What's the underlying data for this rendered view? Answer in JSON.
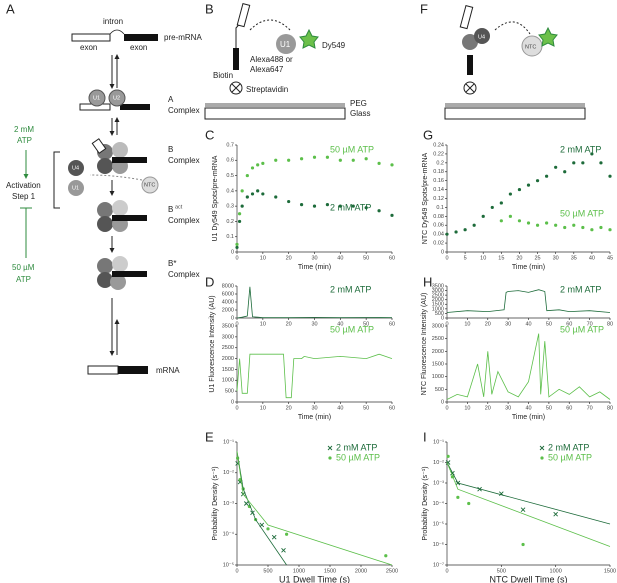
{
  "panels": [
    "A",
    "B",
    "C",
    "D",
    "E",
    "F",
    "G",
    "H",
    "I"
  ],
  "diagram_a": {
    "intron": "intron",
    "exon_left": "exon",
    "exon_right": "exon",
    "pre_mrna": "pre-mRNA",
    "a": "A",
    "a_complex": "Complex",
    "b": "B",
    "b_complex": "Complex",
    "bact": "B",
    "bact_sup": "act",
    "bact_complex": "Complex",
    "bstar": "B*",
    "bstar_complex": "Complex",
    "mrna": "mRNA",
    "high_atp": "2 mM",
    "high_atp_unit": "ATP",
    "activation": "Activation",
    "step": "Step 1",
    "low_atp": "50 µM",
    "low_atp_unit": "ATP",
    "u1": "U1",
    "u2": "U2",
    "u4": "U4",
    "u1_free": "U1",
    "u4_free": "U4",
    "ntc": "NTC"
  },
  "diagram_b": {
    "u1": "U1",
    "dye": "Dy549",
    "alexa_a": "Alexa488 or",
    "alexa_b": "Alexa647",
    "biotin": "Biotin",
    "streptavidin": "Streptavidin",
    "peg": "PEG",
    "glass": "Glass"
  },
  "diagram_f": {
    "ntc": "NTC",
    "u4": "U4"
  },
  "chart_data": [
    {
      "type": "scatter",
      "xlabel": "Time (min)",
      "ylabel": "U1  Dy549 Spots/pre-mRNA",
      "xlim": [
        0,
        60
      ],
      "xticks": [
        0,
        10,
        20,
        30,
        40,
        50,
        60
      ],
      "ylim": [
        0,
        0.7
      ],
      "yticks": [
        0,
        0.1,
        0.2,
        0.3,
        0.4,
        0.5,
        0.6,
        0.7
      ],
      "series": [
        {
          "name": "50 µM ATP",
          "color": "#5cbf4a",
          "marker": "dot",
          "x": [
            0,
            1,
            2,
            4,
            6,
            8,
            10,
            15,
            20,
            25,
            30,
            35,
            40,
            45,
            50,
            55,
            60
          ],
          "values": [
            0.05,
            0.25,
            0.4,
            0.5,
            0.55,
            0.57,
            0.58,
            0.6,
            0.6,
            0.61,
            0.62,
            0.62,
            0.6,
            0.6,
            0.61,
            0.58,
            0.57
          ]
        },
        {
          "name": "2 mM ATP",
          "color": "#1d6b3a",
          "marker": "dot",
          "x": [
            0,
            1,
            2,
            4,
            6,
            8,
            10,
            15,
            20,
            25,
            30,
            35,
            40,
            45,
            50,
            55,
            60
          ],
          "values": [
            0.03,
            0.2,
            0.3,
            0.36,
            0.38,
            0.4,
            0.38,
            0.36,
            0.33,
            0.31,
            0.3,
            0.31,
            0.3,
            0.3,
            0.29,
            0.27,
            0.24
          ]
        }
      ]
    },
    {
      "type": "line",
      "xlim": [
        0,
        60
      ],
      "xticks": [
        0,
        10,
        20,
        30,
        40,
        50,
        60
      ],
      "ylim": [
        0,
        8000
      ],
      "yticks": [
        0,
        2000,
        4000,
        6000,
        8000
      ],
      "series": [
        {
          "name": "2 mM ATP",
          "color": "#1d6b3a",
          "marker": "line",
          "x": [
            0,
            2,
            4,
            5,
            6,
            8,
            10,
            20,
            30,
            40,
            50,
            60
          ],
          "values": [
            0,
            200,
            500,
            7800,
            300,
            200,
            100,
            100,
            150,
            100,
            120,
            100
          ]
        }
      ]
    },
    {
      "type": "line",
      "xlabel": "Time (min)",
      "ylabel": "U1 Fluorescence Intensity (AU)",
      "xlim": [
        0,
        60
      ],
      "xticks": [
        0,
        10,
        20,
        30,
        40,
        50,
        60
      ],
      "ylim": [
        0,
        3500
      ],
      "yticks": [
        0,
        500,
        1000,
        1500,
        2000,
        2500,
        3000,
        3500
      ],
      "series": [
        {
          "name": "50 µM ATP",
          "color": "#5cbf4a",
          "marker": "line",
          "x": [
            0,
            1,
            2,
            4,
            5,
            18,
            19,
            21,
            22,
            25,
            26,
            30,
            40,
            50,
            55,
            60
          ],
          "values": [
            500,
            2000,
            400,
            400,
            2200,
            2200,
            200,
            200,
            2000,
            2000,
            2100,
            2000,
            2100,
            2000,
            2200,
            2000
          ]
        }
      ]
    },
    {
      "type": "scatter",
      "log_y": true,
      "xlabel": "U1 Dwell Time (s)",
      "ylabel": "Probability Density (s⁻¹)",
      "xlim": [
        0,
        2500
      ],
      "xticks": [
        0,
        500,
        1000,
        1500,
        2000,
        2500
      ],
      "ylim": [
        1e-05,
        0.1
      ],
      "yticks": [
        {
          "value": 0.1,
          "label": "10⁻¹"
        },
        {
          "value": 0.01,
          "label": "10⁻²"
        },
        {
          "value": 0.001,
          "label": "10⁻³"
        },
        {
          "value": 0.0001,
          "label": "10⁻⁴"
        },
        {
          "value": 1e-05,
          "label": "10⁻⁵"
        }
      ],
      "series": [
        {
          "name": "2 mM ATP",
          "color": "#1d6b3a",
          "marker": "x",
          "x": [
            10,
            50,
            100,
            150,
            250,
            400,
            600,
            750
          ],
          "values": [
            0.02,
            0.005,
            0.002,
            0.001,
            0.0005,
            0.0002,
            8e-05,
            3e-05
          ]
        },
        {
          "name": "50 µM ATP",
          "color": "#5cbf4a",
          "marker": "dot",
          "x": [
            10,
            50,
            100,
            200,
            300,
            500,
            800,
            2400
          ],
          "values": [
            0.03,
            0.006,
            0.003,
            0.0008,
            0.0003,
            0.00015,
            0.0001,
            2e-05
          ]
        },
        {
          "color": "#1d6b3a",
          "marker": "line",
          "x": [
            0,
            100,
            300,
            800
          ],
          "values": [
            0.05,
            0.003,
            0.0003,
            1e-05
          ]
        },
        {
          "color": "#5cbf4a",
          "marker": "line",
          "x": [
            0,
            100,
            500,
            2500
          ],
          "values": [
            0.05,
            0.002,
            0.0002,
            1e-05
          ]
        }
      ]
    },
    {
      "type": "scatter",
      "xlabel": "Time (min)",
      "ylabel": "NTC Dy549 Spots/pre-mRNA",
      "xlim": [
        0,
        45
      ],
      "xticks": [
        0,
        5,
        10,
        15,
        20,
        25,
        30,
        35,
        40,
        45
      ],
      "ylim": [
        0,
        0.24
      ],
      "yticks": [
        0,
        0.02,
        0.04,
        0.06,
        0.08,
        0.1,
        0.12,
        0.14,
        0.16,
        0.18,
        0.2,
        0.22,
        0.24
      ],
      "series": [
        {
          "name": "2 mM ATP",
          "color": "#1d6b3a",
          "marker": "dot",
          "x": [
            0,
            2.5,
            5,
            7.5,
            10,
            12.5,
            15,
            17.5,
            20,
            22.5,
            25,
            27.5,
            30,
            32.5,
            35,
            37.5,
            40,
            42.5,
            45
          ],
          "values": [
            0.04,
            0.045,
            0.05,
            0.06,
            0.08,
            0.1,
            0.11,
            0.13,
            0.14,
            0.15,
            0.16,
            0.17,
            0.19,
            0.18,
            0.2,
            0.2,
            0.22,
            0.2,
            0.17
          ]
        },
        {
          "name": "50 µM ATP",
          "color": "#5cbf4a",
          "marker": "dot",
          "x": [
            0,
            2.5,
            5,
            7.5,
            10,
            12.5,
            15,
            17.5,
            20,
            22.5,
            25,
            27.5,
            30,
            32.5,
            35,
            37.5,
            40,
            42.5,
            45
          ],
          "values": [
            null,
            null,
            null,
            null,
            null,
            null,
            0.07,
            0.08,
            0.07,
            0.065,
            0.06,
            0.065,
            0.06,
            0.055,
            0.06,
            0.055,
            0.05,
            0.055,
            0.05
          ]
        }
      ]
    },
    {
      "type": "line",
      "xlim": [
        0,
        80
      ],
      "xticks": [
        0,
        10,
        20,
        30,
        40,
        50,
        60,
        70,
        80
      ],
      "ylim": [
        0,
        3500
      ],
      "yticks": [
        0,
        500,
        1000,
        1500,
        2000,
        2500,
        3000,
        3500
      ],
      "series": [
        {
          "name": "2 mM ATP",
          "color": "#1d6b3a",
          "marker": "line",
          "x": [
            0,
            10,
            20,
            28,
            29,
            30,
            35,
            40,
            45,
            48,
            49,
            55,
            60,
            70,
            80
          ],
          "values": [
            600,
            800,
            700,
            900,
            2800,
            2900,
            3000,
            2800,
            3100,
            2900,
            800,
            900,
            700,
            800,
            600
          ]
        }
      ]
    },
    {
      "type": "line",
      "xlabel": "Time (min)",
      "ylabel": "NTC Fluorescence Intensity (AU)",
      "xlim": [
        0,
        80
      ],
      "xticks": [
        0,
        10,
        20,
        30,
        40,
        50,
        60,
        70,
        80
      ],
      "ylim": [
        0,
        3000
      ],
      "yticks": [
        0,
        500,
        1000,
        1500,
        2000,
        2500,
        3000
      ],
      "series": [
        {
          "name": "50 µM ATP",
          "color": "#5cbf4a",
          "marker": "line",
          "x": [
            0,
            5,
            10,
            15,
            18,
            20,
            22,
            25,
            30,
            35,
            40,
            45,
            46,
            48,
            50,
            55,
            60,
            65,
            70,
            75,
            80
          ],
          "values": [
            100,
            300,
            200,
            1500,
            200,
            2000,
            300,
            1200,
            400,
            200,
            800,
            2700,
            300,
            2400,
            200,
            500,
            300,
            600,
            200,
            400,
            100
          ]
        }
      ]
    },
    {
      "type": "scatter",
      "log_y": true,
      "xlabel": "NTC Dwell Time (s)",
      "ylabel": "Probability Density (s⁻¹)",
      "xlim": [
        0,
        1500
      ],
      "xticks": [
        0,
        500,
        1000,
        1500
      ],
      "ylim": [
        1e-07,
        0.1
      ],
      "yticks": [
        {
          "value": 0.1,
          "label": "10⁻¹"
        },
        {
          "value": 0.01,
          "label": "10⁻²"
        },
        {
          "value": 0.001,
          "label": "10⁻³"
        },
        {
          "value": 0.0001,
          "label": "10⁻⁴"
        },
        {
          "value": 1e-05,
          "label": "10⁻⁵"
        },
        {
          "value": 1e-06,
          "label": "10⁻⁶"
        },
        {
          "value": 1e-07,
          "label": "10⁻⁷"
        }
      ],
      "series": [
        {
          "name": "2 mM ATP",
          "color": "#1d6b3a",
          "marker": "x",
          "x": [
            10,
            50,
            100,
            300,
            500,
            700,
            1000
          ],
          "values": [
            0.01,
            0.003,
            0.001,
            0.0005,
            0.0003,
            5e-05,
            3e-05
          ]
        },
        {
          "name": "50 µM ATP",
          "color": "#5cbf4a",
          "marker": "dot",
          "x": [
            10,
            50,
            100,
            200,
            700
          ],
          "values": [
            0.02,
            0.002,
            0.0002,
            0.0001,
            1e-06
          ]
        },
        {
          "color": "#1d6b3a",
          "marker": "line",
          "x": [
            0,
            100,
            1500
          ],
          "values": [
            0.01,
            0.001,
            1e-05
          ]
        },
        {
          "color": "#5cbf4a",
          "marker": "line",
          "x": [
            0,
            100,
            1500
          ],
          "values": [
            0.01,
            0.0005,
            8e-07
          ]
        }
      ]
    }
  ]
}
